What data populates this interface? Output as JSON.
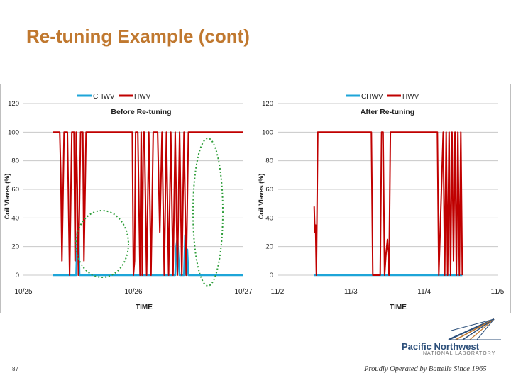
{
  "slide": {
    "title": "Re-tuning Example (cont)",
    "page_number": "87",
    "logo": {
      "name": "Pacific Northwest",
      "sub": "NATIONAL LABORATORY"
    },
    "tagline": "Proudly Operated by Battelle Since 1965"
  },
  "colors": {
    "chwv": "#1ea5d8",
    "hwv": "#c00000",
    "title": "#c0782f",
    "annotation": "#2e9e3a"
  },
  "chart_data": [
    {
      "type": "line",
      "title": "Before Re-tuning",
      "xlabel": "TIME",
      "ylabel": "Coil Vlaves (%)",
      "ylim": [
        0,
        120
      ],
      "yticks": [
        0,
        20,
        40,
        60,
        80,
        100,
        120
      ],
      "xlim": [
        0,
        2
      ],
      "xticks": [
        {
          "x": 0,
          "label": "10/25"
        },
        {
          "x": 1,
          "label": "10/26"
        },
        {
          "x": 2,
          "label": "10/27"
        }
      ],
      "grid": true,
      "legend": "top-center",
      "annotations": "dotted ellipses around CHWV spikes",
      "series": [
        {
          "name": "CHWV",
          "color": "#1ea5d8",
          "x": [
            0.27,
            0.48,
            0.49,
            0.5,
            0.51,
            1.38,
            1.39,
            1.4,
            1.41,
            1.42,
            1.46,
            1.47,
            1.48,
            1.49,
            1.5,
            2.0
          ],
          "y": [
            0,
            0,
            30,
            36,
            0,
            0,
            20,
            26,
            12,
            0,
            0,
            28,
            0,
            18,
            0,
            0
          ]
        },
        {
          "name": "HWV",
          "color": "#c00000",
          "x": [
            0.27,
            0.33,
            0.34,
            0.35,
            0.37,
            0.38,
            0.4,
            0.42,
            0.44,
            0.46,
            0.47,
            0.48,
            0.49,
            0.5,
            0.52,
            0.54,
            0.55,
            0.57,
            0.6,
            0.62,
            0.99,
            1.0,
            1.01,
            1.02,
            1.04,
            1.06,
            1.07,
            1.08,
            1.09,
            1.1,
            1.12,
            1.14,
            1.16,
            1.18,
            1.22,
            1.24,
            1.26,
            1.28,
            1.3,
            1.32,
            1.34,
            1.36,
            1.38,
            1.4,
            1.42,
            1.44,
            1.46,
            1.48,
            1.5,
            1.52,
            2.0
          ],
          "y": [
            100,
            100,
            70,
            10,
            100,
            100,
            100,
            0,
            100,
            100,
            10,
            100,
            60,
            0,
            100,
            100,
            10,
            100,
            100,
            100,
            100,
            0,
            10,
            100,
            100,
            0,
            100,
            0,
            100,
            100,
            0,
            100,
            0,
            100,
            100,
            30,
            100,
            0,
            100,
            0,
            100,
            0,
            100,
            0,
            100,
            0,
            100,
            0,
            100,
            100,
            100
          ]
        }
      ]
    },
    {
      "type": "line",
      "title": "After Re-tuning",
      "xlabel": "TIME",
      "ylabel": "Coil Vlaves (%)",
      "ylim": [
        0,
        120
      ],
      "yticks": [
        0,
        20,
        40,
        60,
        80,
        100,
        120
      ],
      "xlim": [
        0,
        3
      ],
      "xticks": [
        {
          "x": 0,
          "label": "11/2"
        },
        {
          "x": 1,
          "label": "11/3"
        },
        {
          "x": 2,
          "label": "11/4"
        },
        {
          "x": 3,
          "label": "11/5"
        }
      ],
      "grid": true,
      "legend": "top-right",
      "series": [
        {
          "name": "CHWV",
          "color": "#1ea5d8",
          "x": [
            0.5,
            2.52
          ],
          "y": [
            0,
            0
          ]
        },
        {
          "name": "HWV",
          "color": "#c00000",
          "x": [
            0.5,
            0.51,
            0.52,
            0.53,
            0.55,
            0.56,
            1.28,
            1.3,
            1.36,
            1.4,
            1.42,
            1.44,
            1.46,
            1.48,
            1.5,
            1.52,
            1.54,
            1.56,
            2.18,
            2.2,
            2.26,
            2.28,
            2.3,
            2.32,
            2.34,
            2.36,
            2.38,
            2.4,
            2.42,
            2.44,
            2.46,
            2.48,
            2.5,
            2.52
          ],
          "y": [
            48,
            30,
            35,
            0,
            100,
            100,
            100,
            0,
            0,
            0,
            100,
            100,
            0,
            15,
            25,
            0,
            100,
            100,
            100,
            0,
            100,
            0,
            100,
            0,
            100,
            0,
            100,
            10,
            100,
            0,
            100,
            0,
            100,
            0
          ]
        }
      ]
    }
  ]
}
